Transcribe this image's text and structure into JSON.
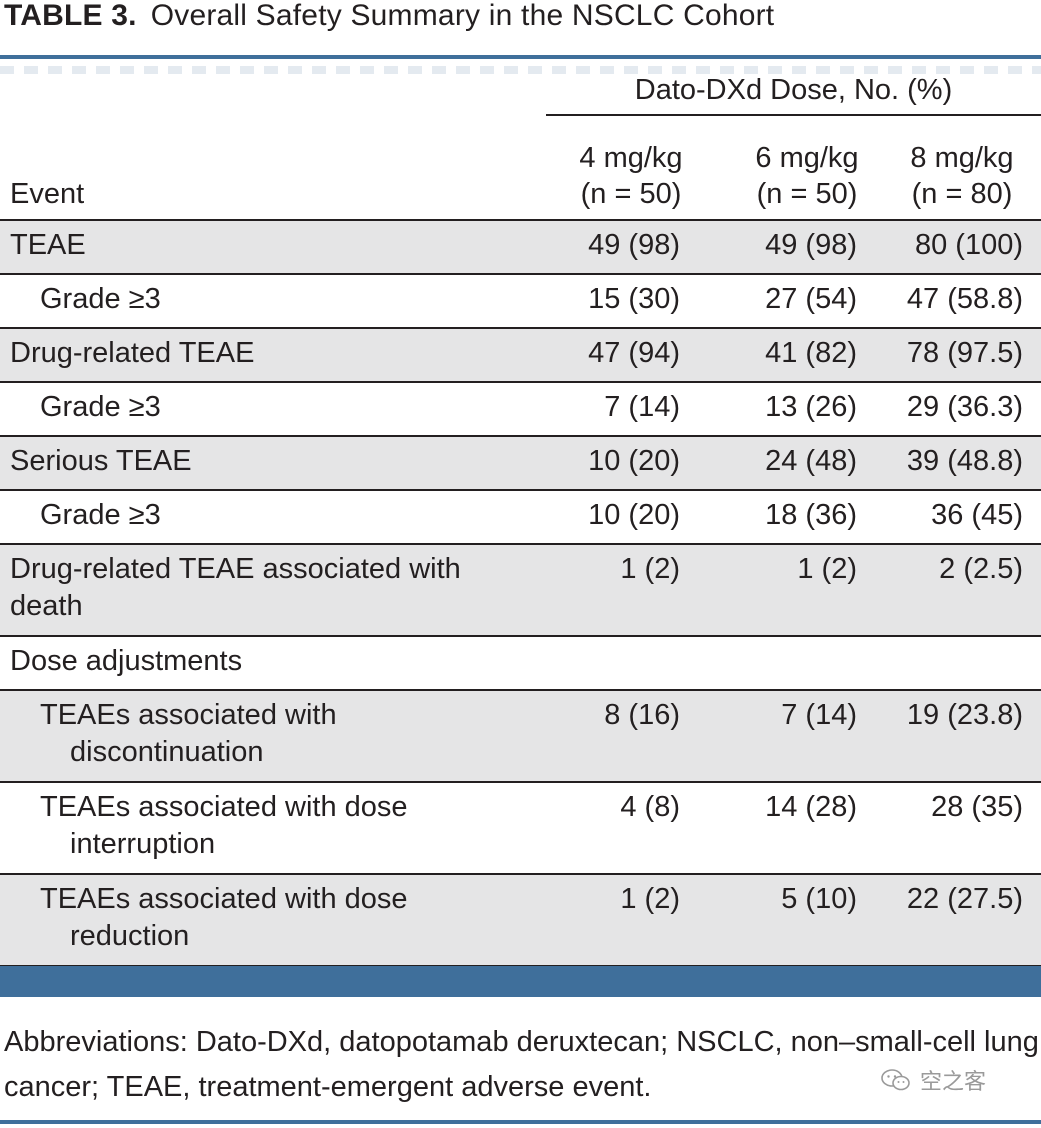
{
  "caption": {
    "label": "TABLE 3.",
    "title": "Overall Safety Summary in the NSCLC Cohort"
  },
  "header": {
    "group": "Dato-DXd Dose, No. (%)",
    "event": "Event",
    "columns": [
      {
        "dose": "4 mg/kg",
        "n": "(n = 50)"
      },
      {
        "dose": "6 mg/kg",
        "n": "(n = 50)"
      },
      {
        "dose": "8 mg/kg",
        "n": "(n = 80)"
      }
    ]
  },
  "rows": [
    {
      "event": "TEAE",
      "indent": false,
      "values": [
        "49 (98)",
        "49 (98)",
        "80 (100)"
      ]
    },
    {
      "event": "Grade ≥3",
      "indent": true,
      "values": [
        "15 (30)",
        "27 (54)",
        "47 (58.8)"
      ]
    },
    {
      "event": "Drug-related TEAE",
      "indent": false,
      "values": [
        "47 (94)",
        "41 (82)",
        "78 (97.5)"
      ]
    },
    {
      "event": "Grade ≥3",
      "indent": true,
      "values": [
        "7 (14)",
        "13 (26)",
        "29 (36.3)"
      ]
    },
    {
      "event": "Serious TEAE",
      "indent": false,
      "values": [
        "10 (20)",
        "24 (48)",
        "39 (48.8)"
      ]
    },
    {
      "event": "Grade ≥3",
      "indent": true,
      "values": [
        "10 (20)",
        "18 (36)",
        "36 (45)"
      ]
    },
    {
      "event": "Drug-related TEAE associated with",
      "event_cont": "death",
      "indent": false,
      "values": [
        "1 (2)",
        "1 (2)",
        "2 (2.5)"
      ]
    },
    {
      "event": "Dose adjustments",
      "indent": false,
      "values": [
        "",
        "",
        ""
      ]
    },
    {
      "event": "TEAEs associated with",
      "event_cont": "discontinuation",
      "indent": true,
      "values": [
        "8 (16)",
        "7 (14)",
        "19 (23.8)"
      ]
    },
    {
      "event": "TEAEs associated with dose",
      "event_cont": "interruption",
      "indent": true,
      "values": [
        "4 (8)",
        "14 (28)",
        "28 (35)"
      ]
    },
    {
      "event": "TEAEs associated with dose",
      "event_cont": "reduction",
      "indent": true,
      "values": [
        "1 (2)",
        "5 (10)",
        "22 (27.5)"
      ]
    }
  ],
  "footnote": "Abbreviations: Dato-DXd, datopotamab deruxtecan; NSCLC, non–small-cell lung cancer; TEAE, treatment-emergent adverse event.",
  "watermark": {
    "icon": "wechat-icon",
    "text": "空之客"
  },
  "colors": {
    "accent": "#3f6f9b",
    "shade": "#e5e5e6"
  }
}
